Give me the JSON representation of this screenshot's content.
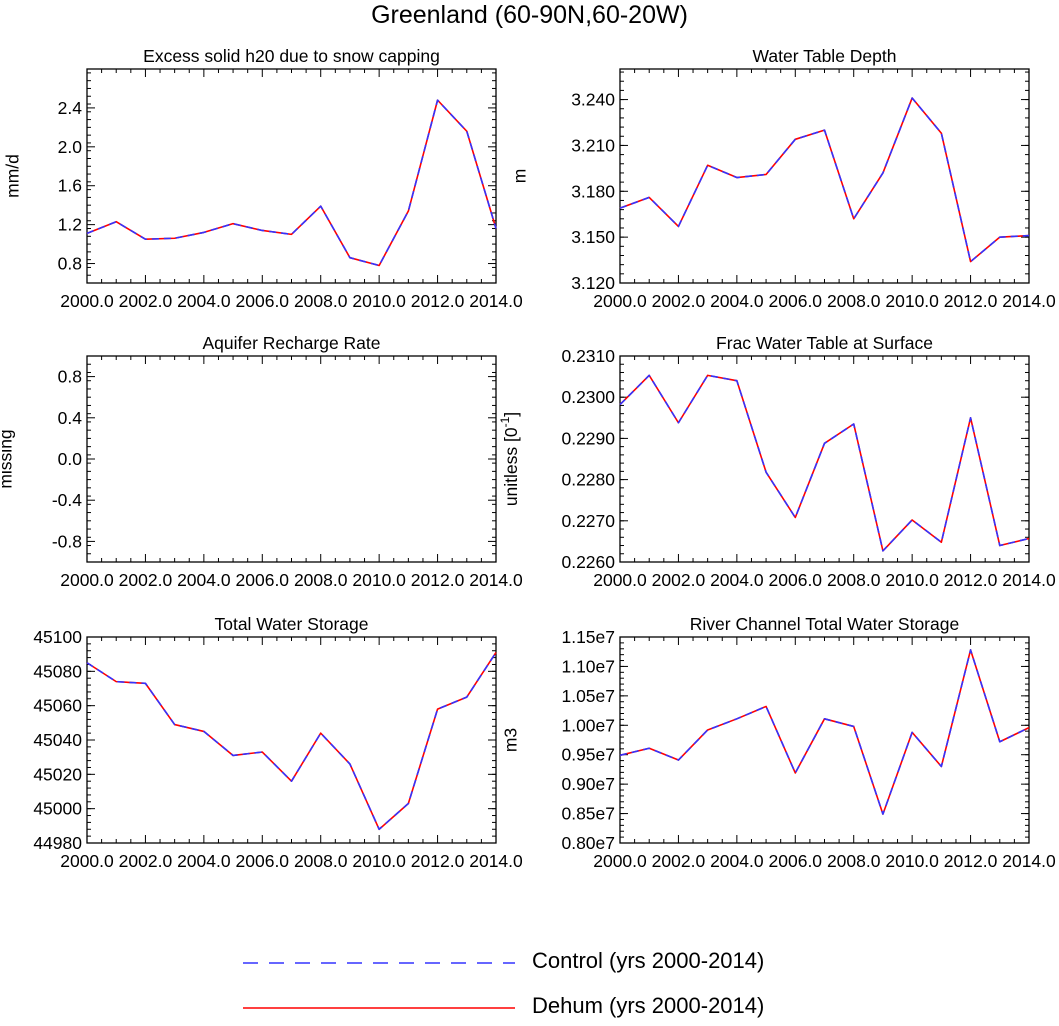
{
  "title": "Greenland (60-90N,60-20W)",
  "legend": [
    {
      "label": "Control (yrs 2000-2014)",
      "color": "#3333ff",
      "style": "dashed"
    },
    {
      "label": "Dehum (yrs 2000-2014)",
      "color": "#ff0000",
      "style": "solid"
    }
  ],
  "chart_data": [
    {
      "type": "line",
      "title": "Excess solid h20 due to snow capping",
      "ylabel": "mm/d",
      "xlim": [
        2000,
        2014
      ],
      "ylim": [
        0.6,
        2.8
      ],
      "yticks": [
        0.8,
        1.2,
        1.6,
        2.0,
        2.4
      ],
      "ytick_labels": [
        "0.8",
        "1.2",
        "1.6",
        "2.0",
        "2.4"
      ],
      "ylabel_sup": null,
      "x": [
        2000,
        2001,
        2002,
        2003,
        2004,
        2005,
        2006,
        2007,
        2008,
        2009,
        2010,
        2011,
        2012,
        2013,
        2014
      ],
      "series": [
        {
          "name": "Control (yrs 2000-2014)",
          "values": [
            1.11,
            1.23,
            1.05,
            1.06,
            1.12,
            1.21,
            1.14,
            1.1,
            1.39,
            0.86,
            0.78,
            1.34,
            2.48,
            2.16,
            1.16
          ]
        },
        {
          "name": "Dehum (yrs 2000-2014)",
          "values": [
            1.11,
            1.23,
            1.05,
            1.06,
            1.12,
            1.21,
            1.14,
            1.1,
            1.39,
            0.86,
            0.78,
            1.34,
            2.48,
            2.16,
            1.16
          ]
        }
      ]
    },
    {
      "type": "line",
      "title": "Water Table Depth",
      "ylabel": "m",
      "xlim": [
        2000,
        2014
      ],
      "ylim": [
        3.12,
        3.26
      ],
      "yticks": [
        3.12,
        3.15,
        3.18,
        3.21,
        3.24
      ],
      "ytick_labels": [
        "3.120",
        "3.150",
        "3.180",
        "3.210",
        "3.240"
      ],
      "ylabel_sup": null,
      "x": [
        2000,
        2001,
        2002,
        2003,
        2004,
        2005,
        2006,
        2007,
        2008,
        2009,
        2010,
        2011,
        2012,
        2013,
        2014
      ],
      "series": [
        {
          "name": "Control (yrs 2000-2014)",
          "values": [
            3.169,
            3.176,
            3.157,
            3.197,
            3.189,
            3.191,
            3.214,
            3.22,
            3.162,
            3.192,
            3.241,
            3.218,
            3.134,
            3.15,
            3.151
          ]
        },
        {
          "name": "Dehum (yrs 2000-2014)",
          "values": [
            3.169,
            3.176,
            3.157,
            3.197,
            3.189,
            3.191,
            3.214,
            3.22,
            3.162,
            3.192,
            3.241,
            3.218,
            3.134,
            3.15,
            3.151
          ]
        }
      ]
    },
    {
      "type": "line",
      "title": "Aquifer Recharge Rate",
      "ylabel": "missing",
      "xlim": [
        2000,
        2014
      ],
      "ylim": [
        -1.0,
        1.0
      ],
      "yticks": [
        -0.8,
        -0.4,
        0.0,
        0.4,
        0.8
      ],
      "ytick_labels": [
        "-0.8",
        "-0.4",
        "0.0",
        "0.4",
        "0.8"
      ],
      "ylabel_sup": null,
      "x": [],
      "series": []
    },
    {
      "type": "line",
      "title": "Frac Water Table at Surface",
      "ylabel": "unitless [0-1]",
      "ylabel_parts": [
        "unitless [0",
        "-1",
        "]"
      ],
      "xlim": [
        2000,
        2014
      ],
      "ylim": [
        0.226,
        0.231
      ],
      "yticks": [
        0.226,
        0.227,
        0.228,
        0.229,
        0.23,
        0.231
      ],
      "ytick_labels": [
        "0.2260",
        "0.2270",
        "0.2280",
        "0.2290",
        "0.2300",
        "0.2310"
      ],
      "x": [
        2000,
        2001,
        2002,
        2003,
        2004,
        2005,
        2006,
        2007,
        2008,
        2009,
        2010,
        2011,
        2012,
        2013,
        2014
      ],
      "series": [
        {
          "name": "Control (yrs 2000-2014)",
          "values": [
            0.22982,
            0.23053,
            0.22938,
            0.23053,
            0.2304,
            0.22818,
            0.22708,
            0.22888,
            0.22935,
            0.22627,
            0.22702,
            0.22648,
            0.2295,
            0.2264,
            0.22657
          ]
        },
        {
          "name": "Dehum (yrs 2000-2014)",
          "values": [
            0.22982,
            0.23053,
            0.22938,
            0.23053,
            0.2304,
            0.22818,
            0.22708,
            0.22888,
            0.22935,
            0.22627,
            0.22702,
            0.22648,
            0.2295,
            0.2264,
            0.22657
          ]
        }
      ]
    },
    {
      "type": "line",
      "title": "Total Water Storage",
      "ylabel": "",
      "xlim": [
        2000,
        2014
      ],
      "ylim": [
        44980,
        45100
      ],
      "yticks": [
        44980,
        45000,
        45020,
        45040,
        45060,
        45080,
        45100
      ],
      "ytick_labels": [
        "44980",
        "45000",
        "45020",
        "45040",
        "45060",
        "45080",
        "45100"
      ],
      "x": [
        2000,
        2001,
        2002,
        2003,
        2004,
        2005,
        2006,
        2007,
        2008,
        2009,
        2010,
        2011,
        2012,
        2013,
        2014
      ],
      "series": [
        {
          "name": "Control (yrs 2000-2014)",
          "values": [
            45085,
            45074,
            45073,
            45049,
            45045,
            45031,
            45033,
            45016,
            45044,
            45026,
            44988,
            45003,
            45058,
            45065,
            45091
          ]
        },
        {
          "name": "Dehum (yrs 2000-2014)",
          "values": [
            45085,
            45074,
            45073,
            45049,
            45045,
            45031,
            45033,
            45016,
            45044,
            45026,
            44988,
            45003,
            45058,
            45065,
            45091
          ]
        }
      ]
    },
    {
      "type": "line",
      "title": "River Channel Total Water Storage",
      "ylabel": "m3",
      "xlim": [
        2000,
        2014
      ],
      "ylim": [
        8000000,
        11500000
      ],
      "yticks": [
        8000000,
        8500000,
        9000000,
        9500000,
        10000000,
        10500000,
        11000000,
        11500000
      ],
      "ytick_labels": [
        "0.80e7",
        "0.85e7",
        "0.90e7",
        "0.95e7",
        "1.00e7",
        "1.05e7",
        "1.10e7",
        "1.15e7"
      ],
      "x": [
        2000,
        2001,
        2002,
        2003,
        2004,
        2005,
        2006,
        2007,
        2008,
        2009,
        2010,
        2011,
        2012,
        2013,
        2014
      ],
      "series": [
        {
          "name": "Control (yrs 2000-2014)",
          "values": [
            9490000,
            9610000,
            9410000,
            9920000,
            10110000,
            10320000,
            9190000,
            10110000,
            9980000,
            8490000,
            9880000,
            9300000,
            11280000,
            9720000,
            9960000
          ]
        },
        {
          "name": "Dehum (yrs 2000-2014)",
          "values": [
            9490000,
            9610000,
            9410000,
            9920000,
            10110000,
            10320000,
            9190000,
            10110000,
            9980000,
            8490000,
            9880000,
            9300000,
            11280000,
            9720000,
            9960000
          ]
        }
      ]
    }
  ],
  "xtick_labels": [
    "2000.0",
    "2002.0",
    "2004.0",
    "2006.0",
    "2008.0",
    "2010.0",
    "2012.0",
    "2014.0"
  ]
}
